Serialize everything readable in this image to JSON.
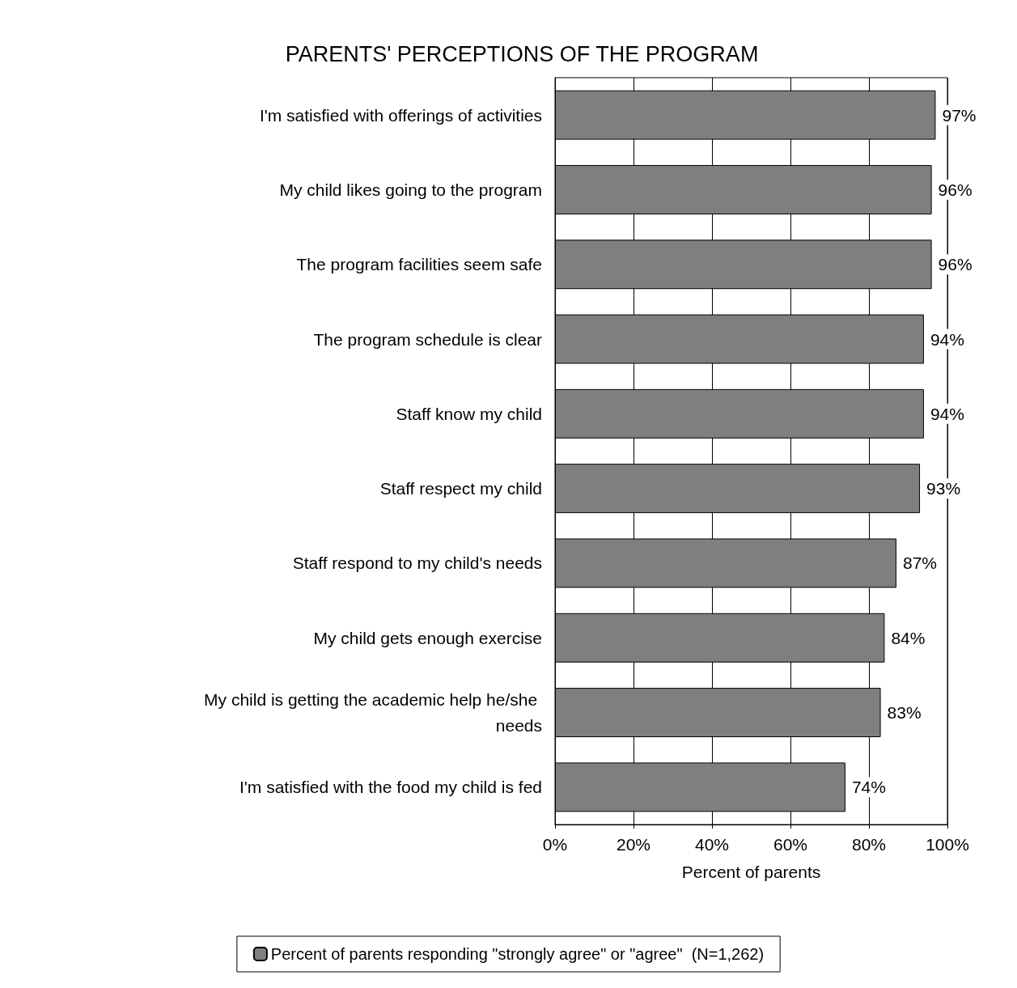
{
  "chart_data": {
    "type": "bar",
    "orientation": "horizontal",
    "title": "PARENTS' PERCEPTIONS OF THE PROGRAM",
    "xlabel": "Percent of parents",
    "categories": [
      "I'm satisfied with offerings of activities",
      "My child likes going to the program",
      "The program facilities seem safe",
      "The program schedule is clear",
      "Staff know my child",
      "Staff respect my child",
      "Staff respond to my child's needs",
      "My child gets enough exercise",
      "My child is getting the academic help he/she needs",
      "I'm satisfied with the food my child is fed"
    ],
    "series": [
      {
        "name": "Percent of parents responding \"strongly agree\" or \"agree\"  (N=1,262)",
        "color": "#7f7f7f",
        "values": [
          97,
          96,
          96,
          94,
          94,
          93,
          87,
          84,
          83,
          74
        ],
        "value_labels": [
          "97%",
          "96%",
          "96%",
          "94%",
          "94%",
          "93%",
          "87%",
          "84%",
          "83%",
          "74%"
        ]
      }
    ],
    "xlim": [
      0,
      100
    ],
    "xticks": [
      {
        "value": 0,
        "label": "0%"
      },
      {
        "value": 20,
        "label": "20%"
      },
      {
        "value": 40,
        "label": "40%"
      },
      {
        "value": 60,
        "label": "60%"
      },
      {
        "value": 80,
        "label": "80%"
      },
      {
        "value": 100,
        "label": "100%"
      }
    ],
    "grid": "x",
    "legend": "bottom"
  }
}
